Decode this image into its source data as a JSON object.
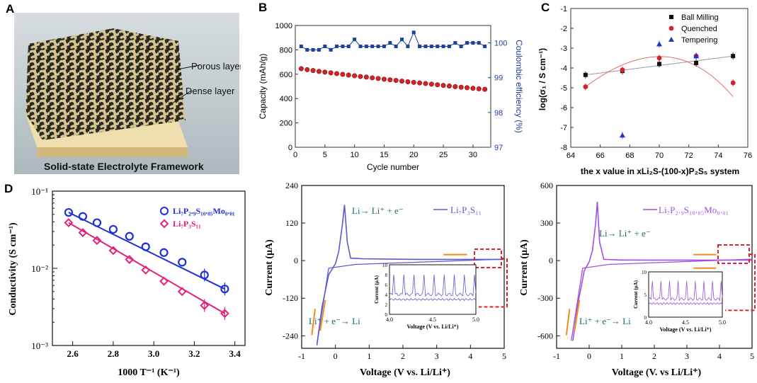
{
  "panels": {
    "A": {
      "letter": "A",
      "porous_label": "Porous layer",
      "dense_label": "Dense layer",
      "caption": "Solid-state Electrolyte Framework",
      "colors": {
        "porous": "#cfbf8e",
        "dense": "#e8d4a0",
        "bg": "#c9d2d6"
      }
    },
    "B": {
      "letter": "B",
      "chart_data": {
        "type": "scatter",
        "xlabel": "Cycle number",
        "ylabel_left": "Capacity (mAh/g)",
        "ylabel_right": "Coulombic efficiency (%)",
        "xlim": [
          0,
          33
        ],
        "ylim_left": [
          0,
          1000
        ],
        "ylim_right": [
          97,
          100.5
        ],
        "xticks": [
          0,
          5,
          10,
          15,
          20,
          25,
          30
        ],
        "yticks_left": [
          0,
          200,
          400,
          600,
          800,
          1000
        ],
        "yticks_right": [
          97,
          98,
          99,
          100
        ],
        "series": [
          {
            "name": "Capacity",
            "axis": "left",
            "color": "#d2232a",
            "x": [
              1,
              2,
              3,
              4,
              5,
              6,
              7,
              8,
              9,
              10,
              11,
              12,
              13,
              14,
              15,
              16,
              17,
              18,
              19,
              20,
              21,
              22,
              23,
              24,
              25,
              26,
              27,
              28,
              29,
              30,
              31,
              32
            ],
            "values": [
              645,
              637,
              630,
              623,
              617,
              611,
              605,
              599,
              593,
              587,
              581,
              576,
              570,
              565,
              559,
              554,
              549,
              543,
              538,
              533,
              528,
              523,
              518,
              513,
              508,
              503,
              498,
              493,
              489,
              484,
              480,
              476
            ]
          },
          {
            "name": "Coulombic efficiency",
            "axis": "right",
            "color": "#1f3f9e",
            "x": [
              1,
              2,
              3,
              4,
              5,
              6,
              7,
              8,
              9,
              10,
              11,
              12,
              13,
              14,
              15,
              16,
              17,
              18,
              19,
              20,
              21,
              22,
              23,
              24,
              25,
              26,
              27,
              28,
              29,
              30,
              31,
              32
            ],
            "values": [
              99.9,
              99.8,
              99.8,
              99.8,
              99.9,
              99.8,
              99.9,
              99.9,
              99.9,
              100.1,
              99.9,
              99.9,
              99.9,
              99.9,
              99.9,
              100.0,
              99.9,
              100.1,
              99.9,
              100.3,
              99.9,
              99.9,
              99.9,
              99.9,
              99.9,
              99.9,
              100.0,
              99.9,
              100.0,
              100.0,
              100.0,
              99.9
            ]
          }
        ]
      }
    },
    "C": {
      "letter": "C",
      "chart_data": {
        "type": "scatter",
        "xlabel": "the x value in xLi₂S-(100-x)P₂S₅ system",
        "ylabel": "log(σ₁ / S cm⁻¹)",
        "xlim": [
          64,
          76
        ],
        "ylim": [
          -8,
          -1
        ],
        "xticks": [
          64,
          66,
          68,
          70,
          72,
          74,
          76
        ],
        "yticks": [
          -8,
          -7,
          -6,
          -5,
          -4,
          -3,
          -2,
          -1
        ],
        "series": [
          {
            "name": "Ball Milling",
            "marker": "square",
            "color": "#111111",
            "x": [
              65,
              67.5,
              70,
              72.5,
              75
            ],
            "values": [
              -4.35,
              -4.15,
              -3.8,
              -3.75,
              -3.4
            ]
          },
          {
            "name": "Quenched",
            "marker": "circle",
            "color": "#d2232a",
            "x": [
              65,
              67.5,
              70,
              72.5,
              75
            ],
            "values": [
              -4.95,
              -4.1,
              -3.5,
              -3.4,
              -4.75
            ]
          },
          {
            "name": "Tempering",
            "marker": "triangle",
            "color": "#2233cc",
            "x": [
              67.5,
              70,
              72.5
            ],
            "values": [
              -7.4,
              -2.8,
              -3.4
            ]
          }
        ]
      }
    },
    "D": {
      "letter": "D",
      "chart_data": {
        "type": "scatter",
        "xlabel": "1000 T⁻¹ (K⁻¹)",
        "ylabel": "Conductivity (S cm⁻¹)",
        "xlim": [
          2.5,
          3.45
        ],
        "ylim_log10": [
          -3,
          -1
        ],
        "xticks": [
          "2.6",
          "2.8",
          "3.0",
          "3.2",
          "3.4"
        ],
        "yticks": [
          "10⁻³",
          "10⁻²",
          "10⁻¹"
        ],
        "series": [
          {
            "name": "Li₇P₂.₉S₁₀.₈₅Mo₀.₀₁",
            "color": "#1f2fd6",
            "x": [
              2.58,
              2.65,
              2.72,
              2.8,
              2.88,
              2.96,
              3.05,
              3.14,
              3.25,
              3.35
            ],
            "values": [
              0.053,
              0.047,
              0.039,
              0.032,
              0.026,
              0.019,
              0.016,
              0.012,
              0.0082,
              0.0054
            ]
          },
          {
            "name": "Li₇P₃S₁₁",
            "color": "#e0247a",
            "x": [
              2.58,
              2.65,
              2.72,
              2.8,
              2.88,
              2.96,
              3.05,
              3.14,
              3.25,
              3.35
            ],
            "values": [
              0.039,
              0.029,
              0.023,
              0.017,
              0.013,
              0.0095,
              0.0068,
              0.005,
              0.0033,
              0.0026
            ]
          }
        ]
      }
    },
    "E": {
      "chart_data": {
        "type": "line",
        "xlabel": "Voltage  (V vs. Li/Li⁺)",
        "ylabel": "Current (μA)",
        "xlim": [
          -1,
          5
        ],
        "ylim": [
          -280,
          240
        ],
        "xticks": [
          "-1",
          "0",
          "1",
          "2",
          "3",
          "4",
          "5"
        ],
        "yticks": [
          "-240",
          "-120",
          "0",
          "120",
          "240"
        ],
        "legend": "Li₇P₃S₁₁",
        "ann_oxid": "Li→  Li⁺ + e⁻",
        "ann_red": "Li⁺ + e⁻→ Li",
        "inset": {
          "xlabel": "Voltage (V vs. Li/Li⁺)",
          "ylabel": "Current (μA)",
          "xticks": [
            "4.0",
            "4.5",
            "5.0"
          ],
          "yticks": [
            "0",
            "2",
            "4",
            "6",
            "8",
            "10"
          ]
        },
        "series": [
          {
            "name": "Li₇P₃S₁₁",
            "color": "#5a5ad0",
            "x": [
              -0.55,
              -0.4,
              -0.2,
              0,
              0.1,
              0.2,
              0.27,
              0.35,
              0.45,
              0.8,
              1.5,
              2.5,
              3.5,
              4.5,
              5
            ],
            "values": [
              -270,
              -150,
              -45,
              -10,
              30,
              110,
              178,
              60,
              8,
              6,
              5,
              4,
              4,
              4,
              4
            ]
          }
        ]
      }
    },
    "F": {
      "chart_data": {
        "type": "line",
        "xlabel": "Voltage  (V. vs Li/Li⁺)",
        "ylabel": "Current (μA)",
        "xlim": [
          -1,
          5
        ],
        "ylim": [
          -700,
          600
        ],
        "xticks": [
          "-1",
          "0",
          "1",
          "2",
          "3",
          "4",
          "5"
        ],
        "yticks": [
          "-600",
          "-300",
          "0",
          "300",
          "600"
        ],
        "legend": "Li₇P₂.₉S₁₀.₈₅Mo₀.₀₁",
        "ann_oxid": "Li→ Li⁺ + e⁻",
        "ann_red": "Li⁺ + e⁻→ Li",
        "inset": {
          "xlabel": "Voltage (V vs. Li/Li⁺)",
          "ylabel": "Current (μA)",
          "xticks": [
            "4.0",
            "4.5",
            "5.0"
          ],
          "yticks": [
            "0",
            "5",
            "10"
          ]
        },
        "series": [
          {
            "name": "Li₇P₂.₉S₁₀.₈₅Mo₀.₀₁",
            "color": "#a050e0",
            "x": [
              -0.5,
              -0.35,
              -0.15,
              0,
              0.1,
              0.2,
              0.25,
              0.32,
              0.45,
              1,
              2,
              3,
              4,
              5
            ],
            "values": [
              -640,
              -350,
              -80,
              -10,
              80,
              300,
              470,
              150,
              10,
              5,
              4,
              4,
              4,
              4
            ]
          }
        ]
      }
    }
  }
}
